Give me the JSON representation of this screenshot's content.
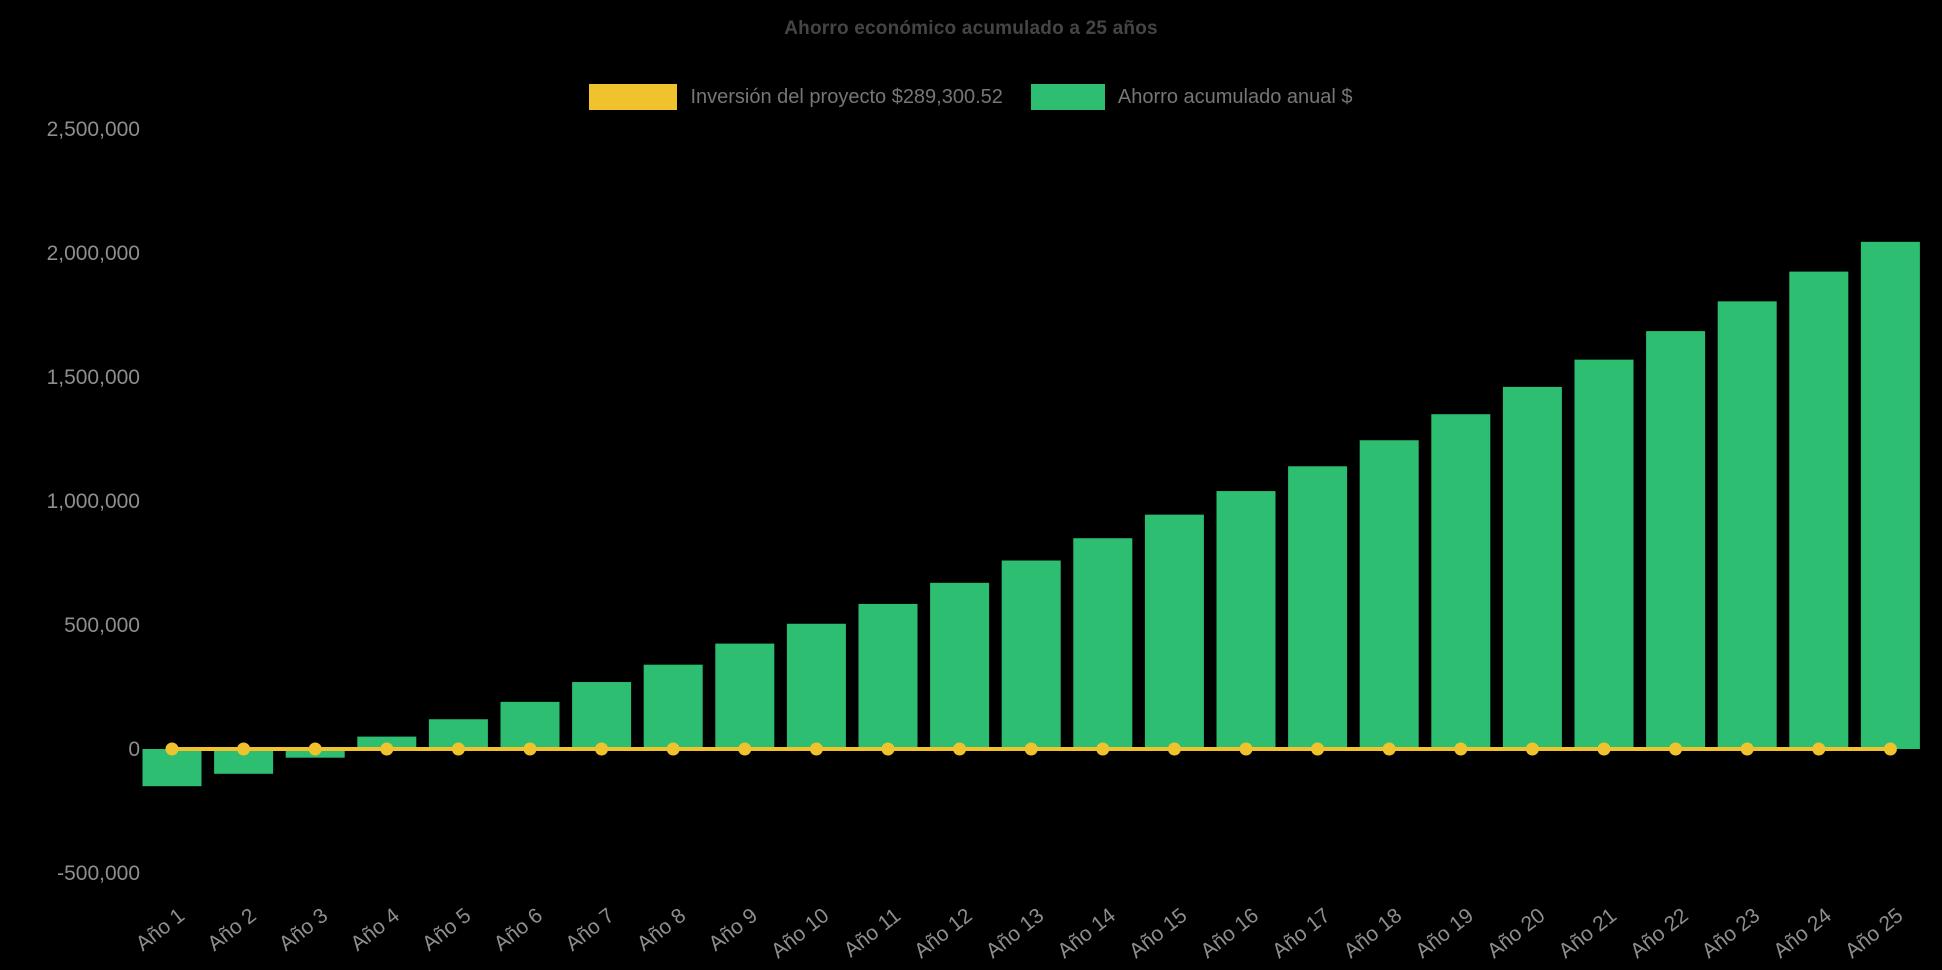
{
  "chart_data": {
    "type": "bar",
    "title": "Ahorro económico acumulado a 25 años",
    "background": "#000000",
    "legend_position": "top",
    "grid": false,
    "xlabel": "",
    "ylabel": "",
    "categories": [
      "Año 1",
      "Año 2",
      "Año 3",
      "Año 4",
      "Año 5",
      "Año 6",
      "Año 7",
      "Año 8",
      "Año 9",
      "Año 10",
      "Año 11",
      "Año 12",
      "Año 13",
      "Año 14",
      "Año 15",
      "Año 16",
      "Año 17",
      "Año 18",
      "Año 19",
      "Año 20",
      "Año 21",
      "Año 22",
      "Año 23",
      "Año 24",
      "Año 25"
    ],
    "series": [
      {
        "name": "Inversión del proyecto $289,300.52",
        "type": "line",
        "color": "#F0C32E",
        "marker": "circle",
        "values": [
          0,
          0,
          0,
          0,
          0,
          0,
          0,
          0,
          0,
          0,
          0,
          0,
          0,
          0,
          0,
          0,
          0,
          0,
          0,
          0,
          0,
          0,
          0,
          0,
          0
        ]
      },
      {
        "name": "Ahorro acumulado anual $",
        "type": "bar",
        "color": "#2DBE71",
        "values": [
          -150000,
          -100000,
          -35000,
          50000,
          120000,
          190000,
          270000,
          340000,
          425000,
          505000,
          585000,
          670000,
          760000,
          850000,
          945000,
          1040000,
          1140000,
          1245000,
          1350000,
          1460000,
          1570000,
          1685000,
          1805000,
          1925000,
          2045000
        ]
      }
    ],
    "ylim": [
      -500000,
      2500000
    ],
    "yticks": [
      -500000,
      0,
      500000,
      1000000,
      1500000,
      2000000,
      2500000
    ],
    "ytick_labels": [
      "-500,000",
      "0",
      "500,000",
      "1,000,000",
      "1,500,000",
      "2,000,000",
      "2,500,000"
    ],
    "xtick_rotation": -38
  }
}
